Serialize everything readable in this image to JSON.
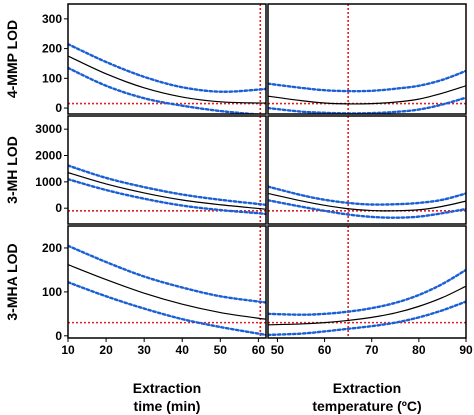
{
  "chart_data": {
    "type": "line",
    "layout": "3x2 panel grid sharing y axes per row and x axes per column",
    "colors": {
      "fit": "#000000",
      "confidence": "#1a5fd6",
      "reference": "#e02020",
      "frame": "#000000"
    },
    "columns": [
      {
        "id": "time",
        "xlabel_line1": "Extraction",
        "xlabel_line2": "time (min)",
        "xlim": [
          10,
          62
        ],
        "ticks": [
          10,
          20,
          30,
          40,
          50,
          60
        ],
        "tick_labels": [
          "10",
          "20",
          "30",
          "40",
          "50",
          "60"
        ],
        "reference_x": 60.5
      },
      {
        "id": "temperature",
        "xlabel_line1": "Extraction",
        "xlabel_line2": "temperature (ºC)",
        "xlim": [
          48,
          90
        ],
        "ticks": [
          50,
          60,
          70,
          80,
          90
        ],
        "tick_labels": [
          "50",
          "60",
          "70",
          "80",
          "90"
        ],
        "reference_x": 65
      }
    ],
    "rows": [
      {
        "id": "4mmp",
        "ylabel": "4-MMP LOD",
        "ylim": [
          -20,
          350
        ],
        "yticks": [
          0,
          100,
          200,
          300
        ],
        "ytick_labels": [
          "0",
          "100",
          "200",
          "300"
        ],
        "reference_y": 15,
        "panels": [
          {
            "x": [
              10,
              20,
              30,
              40,
              50,
              60,
              62
            ],
            "fit": [
              175,
              115,
              68,
              37,
              21,
              17,
              17
            ],
            "upper": [
              215,
              155,
              105,
              70,
              55,
              62,
              65
            ],
            "lower": [
              135,
              75,
              33,
              8,
              -10,
              -22,
              -25
            ]
          },
          {
            "x": [
              48,
              55,
              60,
              65,
              70,
              75,
              80,
              85,
              90
            ],
            "fit": [
              40,
              25,
              17,
              14,
              15,
              20,
              30,
              50,
              75
            ],
            "upper": [
              82,
              68,
              60,
              57,
              58,
              65,
              75,
              95,
              125
            ],
            "lower": [
              0,
              -12,
              -16,
              -18,
              -17,
              -13,
              -5,
              12,
              35
            ]
          }
        ]
      },
      {
        "id": "3mh",
        "ylabel": "3-MH LOD",
        "ylim": [
          -600,
          3500
        ],
        "yticks": [
          0,
          1000,
          2000,
          3000
        ],
        "ytick_labels": [
          "0",
          "1000",
          "2000",
          "3000"
        ],
        "reference_y": -100,
        "panels": [
          {
            "x": [
              10,
              20,
              30,
              40,
              50,
              60,
              62
            ],
            "fit": [
              1350,
              920,
              580,
              310,
              130,
              -10,
              -40
            ],
            "upper": [
              1620,
              1150,
              800,
              520,
              320,
              160,
              130
            ],
            "lower": [
              1100,
              690,
              360,
              100,
              -70,
              -190,
              -220
            ]
          },
          {
            "x": [
              48,
              55,
              60,
              65,
              70,
              75,
              80,
              85,
              90
            ],
            "fit": [
              560,
              280,
              110,
              -20,
              -90,
              -100,
              -60,
              70,
              270
            ],
            "upper": [
              820,
              500,
              320,
              200,
              140,
              150,
              200,
              320,
              560
            ],
            "lower": [
              300,
              60,
              -100,
              -240,
              -330,
              -360,
              -320,
              -190,
              -30
            ]
          }
        ]
      },
      {
        "id": "3mha",
        "ylabel": "3-MHA LOD",
        "ylim": [
          -5,
          250
        ],
        "yticks": [
          0,
          100,
          200
        ],
        "ytick_labels": [
          "0",
          "100",
          "200"
        ],
        "reference_y": 30,
        "panels": [
          {
            "x": [
              10,
              20,
              30,
              40,
              50,
              60,
              62
            ],
            "fit": [
              162,
              128,
              97,
              72,
              53,
              40,
              38
            ],
            "upper": [
              205,
              168,
              135,
              110,
              90,
              78,
              76
            ],
            "lower": [
              122,
              90,
              62,
              38,
              20,
              5,
              2
            ]
          },
          {
            "x": [
              48,
              55,
              60,
              65,
              70,
              75,
              80,
              85,
              90
            ],
            "fit": [
              25,
              27,
              30,
              35,
              42,
              52,
              67,
              87,
              113
            ],
            "upper": [
              50,
              48,
              50,
              55,
              63,
              75,
              93,
              118,
              150
            ],
            "lower": [
              2,
              5,
              10,
              16,
              22,
              30,
              42,
              58,
              78
            ]
          }
        ]
      }
    ]
  }
}
